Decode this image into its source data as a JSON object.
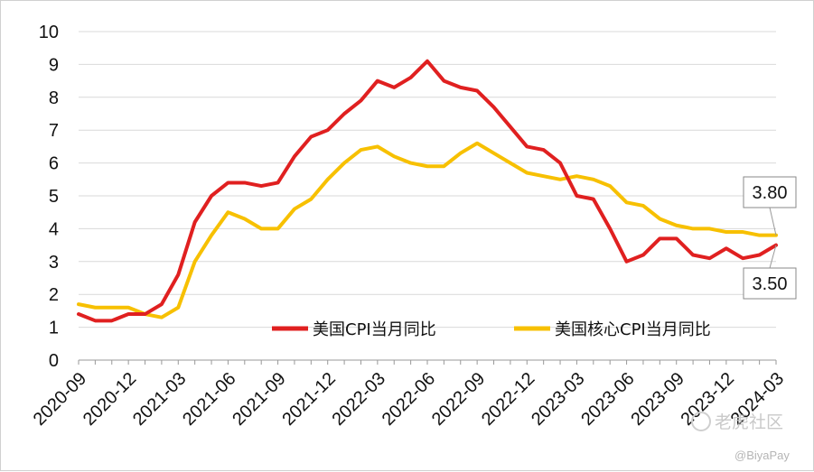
{
  "chart_data": {
    "type": "line",
    "title": "",
    "xlabel": "",
    "ylabel": "",
    "ylim": [
      0,
      10
    ],
    "yticks": [
      0,
      1,
      2,
      3,
      4,
      5,
      6,
      7,
      8,
      9,
      10
    ],
    "grid": true,
    "legend_position": "bottom-center",
    "x": [
      "2020-09",
      "2020-10",
      "2020-11",
      "2020-12",
      "2021-01",
      "2021-02",
      "2021-03",
      "2021-04",
      "2021-05",
      "2021-06",
      "2021-07",
      "2021-08",
      "2021-09",
      "2021-10",
      "2021-11",
      "2021-12",
      "2022-01",
      "2022-02",
      "2022-03",
      "2022-04",
      "2022-05",
      "2022-06",
      "2022-07",
      "2022-08",
      "2022-09",
      "2022-10",
      "2022-11",
      "2022-12",
      "2023-01",
      "2023-02",
      "2023-03",
      "2023-04",
      "2023-05",
      "2023-06",
      "2023-07",
      "2023-08",
      "2023-09",
      "2023-10",
      "2023-11",
      "2023-12",
      "2024-01",
      "2024-02",
      "2024-03"
    ],
    "xtick_labels": [
      "2020-09",
      "2020-12",
      "2021-03",
      "2021-06",
      "2021-09",
      "2021-12",
      "2022-03",
      "2022-06",
      "2022-09",
      "2022-12",
      "2023-03",
      "2023-06",
      "2023-09",
      "2023-12",
      "2024-03"
    ],
    "series": [
      {
        "name": "美国CPI当月同比",
        "color": "#e02020",
        "values": [
          1.4,
          1.2,
          1.2,
          1.4,
          1.4,
          1.7,
          2.6,
          4.2,
          5.0,
          5.4,
          5.4,
          5.3,
          5.4,
          6.2,
          6.8,
          7.0,
          7.5,
          7.9,
          8.5,
          8.3,
          8.6,
          9.1,
          8.5,
          8.3,
          8.2,
          7.7,
          7.1,
          6.5,
          6.4,
          6.0,
          5.0,
          4.9,
          4.0,
          3.0,
          3.2,
          3.7,
          3.7,
          3.2,
          3.1,
          3.4,
          3.1,
          3.2,
          3.5
        ]
      },
      {
        "name": "美国核心CPI当月同比",
        "color": "#f7c000",
        "values": [
          1.7,
          1.6,
          1.6,
          1.6,
          1.4,
          1.3,
          1.6,
          3.0,
          3.8,
          4.5,
          4.3,
          4.0,
          4.0,
          4.6,
          4.9,
          5.5,
          6.0,
          6.4,
          6.5,
          6.2,
          6.0,
          5.9,
          5.9,
          6.3,
          6.6,
          6.3,
          6.0,
          5.7,
          5.6,
          5.5,
          5.6,
          5.5,
          5.3,
          4.8,
          4.7,
          4.3,
          4.1,
          4.0,
          4.0,
          3.9,
          3.9,
          3.8,
          3.8
        ]
      }
    ],
    "annotations": [
      {
        "text": "3.80",
        "series": 1,
        "x": "2024-03"
      },
      {
        "text": "3.50",
        "series": 0,
        "x": "2024-03"
      }
    ]
  },
  "watermark": {
    "brand": "老虎社区",
    "handle": "@BiyaPay"
  },
  "colors": {
    "grid": "#d9d9d9",
    "axis": "#999999"
  }
}
